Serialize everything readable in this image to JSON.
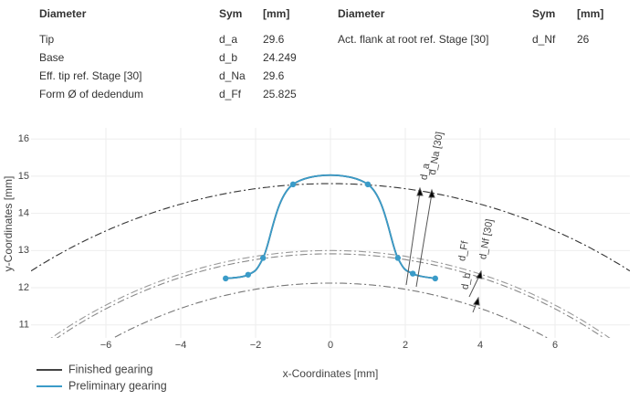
{
  "tables": [
    {
      "header": [
        "Diameter",
        "Sym",
        "[mm]"
      ],
      "rows": [
        [
          "Tip",
          "d_a",
          29.6
        ],
        [
          "Base",
          "d_b",
          24.249
        ],
        [
          "Eff. tip ref. Stage [30]",
          "d_Na",
          29.6
        ],
        [
          "Form Ø of dedendum",
          "d_Ff",
          25.825
        ]
      ]
    },
    {
      "header": [
        "Diameter",
        "Sym",
        "[mm]"
      ],
      "rows": [
        [
          "Act. flank at root ref. Stage [30]",
          "d_Nf",
          26
        ]
      ]
    }
  ],
  "chart_data": {
    "type": "line",
    "x_label": "x-Coordinates [mm]",
    "y_label": "y-Coordinates [mm]",
    "xlim": [
      -8,
      8
    ],
    "ylim": [
      10.65,
      16.3
    ],
    "xticks": [
      {
        "value": -6,
        "label": "−6"
      },
      {
        "value": -4,
        "label": "−4"
      },
      {
        "value": -2,
        "label": "−2"
      },
      0,
      2,
      4,
      6
    ],
    "yticks": [
      11,
      12,
      13,
      14,
      15,
      16
    ],
    "grid": true,
    "x": [
      -2.8,
      -2.2,
      -1.8,
      -1.0,
      1.0,
      1.8,
      2.2,
      2.8
    ],
    "series": [
      {
        "name": "Finished gearing",
        "color": "#444444",
        "values": [
          12.25,
          12.35,
          12.8,
          14.78,
          14.78,
          12.8,
          12.38,
          12.25
        ]
      },
      {
        "name": "Preliminary gearing",
        "color": "#3a9bc8",
        "values": [
          12.25,
          12.35,
          12.8,
          14.78,
          14.78,
          12.8,
          12.38,
          12.25
        ]
      }
    ],
    "annotations": [
      "d_a",
      "d_Na [30]",
      "d_b",
      "d_Ff",
      "d_Nf [30]"
    ],
    "legend": "bottom-left"
  }
}
